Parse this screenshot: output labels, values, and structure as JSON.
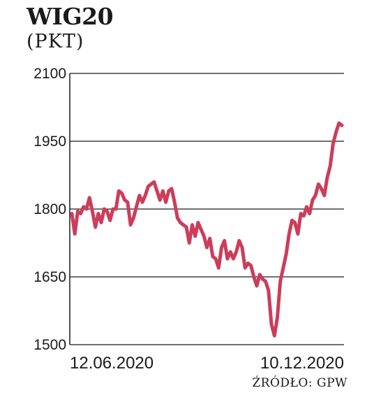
{
  "header": {
    "title": "WIG20",
    "unit": "(PKT)"
  },
  "footer": {
    "source": "ŹRÓDŁO: GPW"
  },
  "colors": {
    "line": "#cc3d5a",
    "grid": "#1a1a1a",
    "text": "#1a1a1a"
  },
  "chart_data": {
    "type": "line",
    "title": "WIG20",
    "ylabel": "(PKT)",
    "ylim": [
      1500,
      2100
    ],
    "yticks": [
      1500,
      1650,
      1800,
      1950,
      2100
    ],
    "grid": true,
    "x_tick_labels": [
      "12.06.2020",
      "10.12.2020"
    ],
    "series": [
      {
        "values": [
          1790,
          1745,
          1795,
          1790,
          1805,
          1800,
          1825,
          1795,
          1760,
          1790,
          1770,
          1800,
          1795,
          1775,
          1800,
          1800,
          1840,
          1835,
          1820,
          1815,
          1765,
          1780,
          1805,
          1830,
          1815,
          1830,
          1850,
          1855,
          1860,
          1840,
          1820,
          1840,
          1815,
          1840,
          1845,
          1815,
          1780,
          1770,
          1765,
          1760,
          1725,
          1765,
          1740,
          1770,
          1755,
          1740,
          1715,
          1735,
          1695,
          1690,
          1670,
          1715,
          1730,
          1690,
          1705,
          1690,
          1705,
          1730,
          1715,
          1670,
          1680,
          1675,
          1650,
          1630,
          1655,
          1645,
          1640,
          1620,
          1545,
          1520,
          1560,
          1640,
          1670,
          1700,
          1745,
          1775,
          1770,
          1745,
          1790,
          1785,
          1805,
          1790,
          1820,
          1830,
          1855,
          1845,
          1830,
          1870,
          1895,
          1945,
          1970,
          1990,
          1985
        ]
      }
    ]
  }
}
